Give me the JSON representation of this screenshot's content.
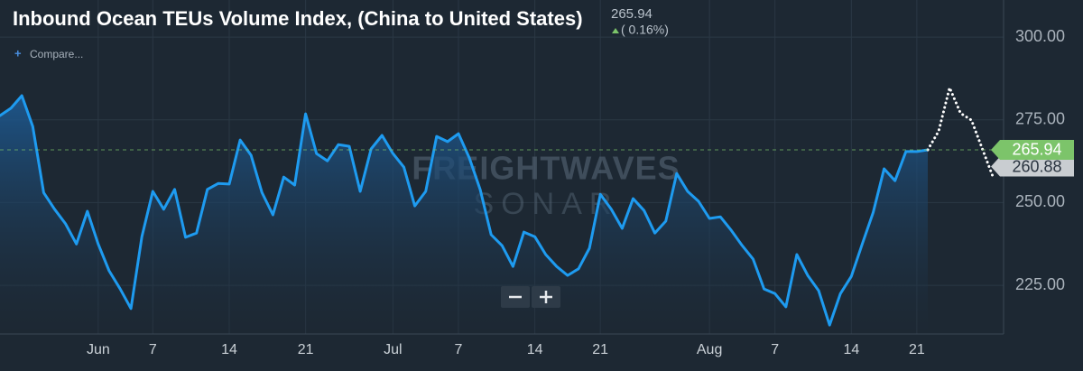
{
  "chart_data": {
    "type": "line",
    "title": "Inbound Ocean TEUs Volume Index, (China to United States)",
    "header_value": 265.94,
    "change_label": "( 0.16%)",
    "compare_label": "Compare...",
    "watermark": [
      "FREIGHTWAVES",
      "SONAR"
    ],
    "categories": [
      null,
      null,
      null,
      null,
      null,
      null,
      null,
      null,
      null,
      "Jun",
      null,
      null,
      null,
      null,
      "7",
      null,
      null,
      null,
      null,
      null,
      null,
      "14",
      null,
      null,
      null,
      null,
      null,
      null,
      "21",
      null,
      null,
      null,
      null,
      null,
      null,
      null,
      "Jul",
      null,
      null,
      null,
      null,
      null,
      "7",
      null,
      null,
      null,
      null,
      null,
      null,
      "14",
      null,
      null,
      null,
      null,
      null,
      "21",
      null,
      null,
      null,
      null,
      null,
      null,
      null,
      null,
      null,
      "Aug",
      null,
      null,
      null,
      null,
      null,
      "7",
      null,
      null,
      null,
      null,
      null,
      null,
      "14",
      null,
      null,
      null,
      null,
      null,
      "21",
      null,
      null,
      null,
      null,
      null,
      null,
      null
    ],
    "series": [
      {
        "color": "#1e9bf0",
        "style": "solid",
        "area": true,
        "values": [
          276.3,
          278.5,
          282.3,
          273,
          253,
          248,
          243.6,
          237.5,
          247.4,
          237.5,
          229.4,
          224,
          218,
          239.7,
          253.4,
          248,
          254,
          239.5,
          240.8,
          254,
          255.8,
          255.6,
          268.9,
          264.3,
          253,
          246.3,
          257.7,
          255.3,
          276.8,
          264.8,
          262.6,
          267.5,
          267,
          253.4,
          266.2,
          270.3,
          264.8,
          260.7,
          249,
          253.4,
          270,
          268.4,
          270.8,
          263.5,
          253.9,
          240.3,
          237,
          230.7,
          241.1,
          239.7,
          234.3,
          230.7,
          228,
          230,
          236.2,
          252.5,
          248,
          242.2,
          251.2,
          247.6,
          240.8,
          244.4,
          258.8,
          253.4,
          250.4,
          245.2,
          245.7,
          241.6,
          237,
          232.9,
          223.9,
          222.5,
          218.5,
          234.3,
          228,
          223.4,
          213,
          222.5,
          227.7,
          237.5,
          247,
          260.2,
          256.6,
          265.4,
          265.4,
          265.94,
          null,
          null,
          null,
          null,
          null,
          null
        ]
      },
      {
        "color": "#ffffff",
        "style": "dotted",
        "area": false,
        "values": [
          null,
          null,
          null,
          null,
          null,
          null,
          null,
          null,
          null,
          null,
          null,
          null,
          null,
          null,
          null,
          null,
          null,
          null,
          null,
          null,
          null,
          null,
          null,
          null,
          null,
          null,
          null,
          null,
          null,
          null,
          null,
          null,
          null,
          null,
          null,
          null,
          null,
          null,
          null,
          null,
          null,
          null,
          null,
          null,
          null,
          null,
          null,
          null,
          null,
          null,
          null,
          null,
          null,
          null,
          null,
          null,
          null,
          null,
          null,
          null,
          null,
          null,
          null,
          null,
          null,
          null,
          null,
          null,
          null,
          null,
          null,
          null,
          null,
          null,
          null,
          null,
          null,
          null,
          null,
          null,
          null,
          null,
          null,
          null,
          null,
          265.94,
          271.6,
          284.7,
          277,
          274.9,
          266.2,
          257.5
        ]
      }
    ],
    "last_value": 265.94,
    "last_value_color": "#7cc46a",
    "forecast_value": 260.88,
    "forecast_value_color": "#c9cdd1",
    "ylim": [
      210.3,
      311.2
    ],
    "yticks": [
      {
        "value": 225,
        "label": "225.00"
      },
      {
        "value": 250,
        "label": "250.00"
      },
      {
        "value": 275,
        "label": "275.00"
      },
      {
        "value": 300,
        "label": "300.00"
      }
    ],
    "grid": true
  }
}
